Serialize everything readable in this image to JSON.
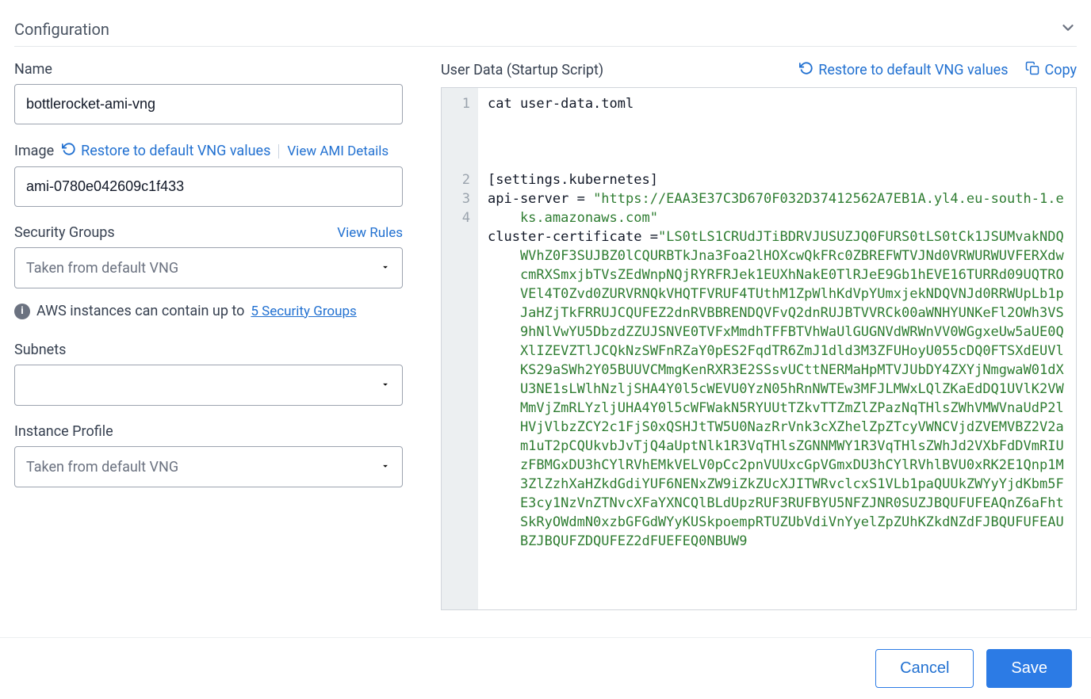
{
  "section": {
    "title": "Configuration"
  },
  "left": {
    "name": {
      "label": "Name",
      "value": "bottlerocket-ami-vng"
    },
    "image": {
      "label": "Image",
      "restore_label": "Restore to default VNG values",
      "view_details_label": "View AMI Details",
      "value": "ami-0780e042609c1f433"
    },
    "security_groups": {
      "label": "Security Groups",
      "view_rules_label": "View Rules",
      "placeholder": "Taken from default VNG",
      "info_prefix": "AWS instances can contain up to",
      "info_link": "5 Security Groups"
    },
    "subnets": {
      "label": "Subnets",
      "placeholder": ""
    },
    "instance_profile": {
      "label": "Instance Profile",
      "placeholder": "Taken from default VNG"
    }
  },
  "right": {
    "label": "User Data (Startup Script)",
    "restore_label": "Restore to default VNG values",
    "copy_label": "Copy",
    "code": {
      "lines": [
        {
          "n": 1,
          "tokens": [
            {
              "t": "plain",
              "v": "cat user-data.toml"
            }
          ],
          "trailing_blank": 3
        },
        {
          "n": 2,
          "tokens": [
            {
              "t": "plain",
              "v": "[settings.kubernetes]"
            }
          ]
        },
        {
          "n": 3,
          "tokens": [
            {
              "t": "plain",
              "v": "api-server = "
            },
            {
              "t": "str",
              "v": "\"https://EAA3E37C3D670F032D37412562A7EB1A.yl4.eu-south-1.eks.amazonaws.com\""
            }
          ],
          "hanging": true
        },
        {
          "n": 4,
          "tokens": [
            {
              "t": "plain",
              "v": "cluster-certificate ="
            },
            {
              "t": "str",
              "v": "\"LS0tLS1CRUdJTiBDRVJUSUZJQ0FURS0tLS0tCk1JSUMvakNDQWVhZ0F3SUJBZ0lCQURBTkJna3Foa2lHOXcwQkFRc0ZBREFWTVJNd0VRWURWUVFERXdwcmRXSmxjbTVsZEdWnpNQjRYRFRJek1EUXhNakE0TlRJeE9Gb1hEVE16TURRd09UQTROVEl4T0Zvd0ZURVRNQkVHQTFVRUF4TUthM1ZpWlhKdVpYUmxjekNDQVNJd0RRWUpLb1pJaHZjTkFRRUJCQUFEZ2dnRVBBRENDQVFvQ2dnRUJBTVVRCk00aWNHYUNKeFl2OWh3VS9hNlVwYU5DbzdZZUJSNVE0TVFxMmdhTFFBTVhWaUlGUGNVdWRWnVV0WGgxeUw5aUE0QXlIZEVZTlJCQkNzSWFnRZaY0pES2FqdTR6ZmJ1dld3M3ZFUHoyU055cDQ0FTSXdEUVlKS29aSWh2Y05BUUVCMmgKenRXR3E2SSsvUCttNERMaHpMTVJUbDY4ZXYjNmgwaW01dXU3NE1sLWlhNzljSHA4Y0l5cWEVU0YzN05hRnNWTEw3MFJLMWxLQlZKaEdDQ1UVlK2VWMmVjZmRLYzljUHA4Y0l5cWFWakN5RYUUtTZkvTTZmZlZPazNqTHlsZWhVMWVnaUdP2lHVjVlbzZCY2c1FjS0xQSHJtTW5U0NazRrVnk3cXZhelZpZTcyVWNCVjdZVEMVBZ2V2am1uT2pCQUkvbJvTjQ4aUptNlk1R3VqTHlsZGNNMWY1R3VqTHlsZWhJd2VXbFdDVmRIUzFBMGxDU3hCYlRVhEMkVELV0pCc2pnVUUxcGpVGmxDU3hCYlRVhlBVU0xRK2E1Qnp1M3ZlZzhXaHZkdGdiYUF6NENxZW9iZkZUcXJITWRvclcxS1VLb1paQUUkZWYyYjdKbm5FE3cy1NzVnZTNvcXFaYXNCQlBLdUpzRUF3RUFBYU5NFZJNR0SUZJBQUFUFEAQnZ6aFhtSkRyOWdmN0xzbGFGdWYyKUSkpoempRTUZUbVdiVnYyelZpZUhKZkdNZdFJBQUFUFEAUBZJBQUFZDQUFEZ2dFUEFEQ0NBUW9"
            }
          ],
          "hanging": true
        }
      ],
      "colors": {
        "plain": "#111827",
        "string": "#2f7d32",
        "gutter_bg": "#eceff1",
        "gutter_fg": "#9aa3ad"
      }
    }
  },
  "footer": {
    "cancel": "Cancel",
    "save": "Save"
  },
  "colors": {
    "link": "#2271d1",
    "primary": "#2c7be5",
    "border": "#9ca3af"
  }
}
